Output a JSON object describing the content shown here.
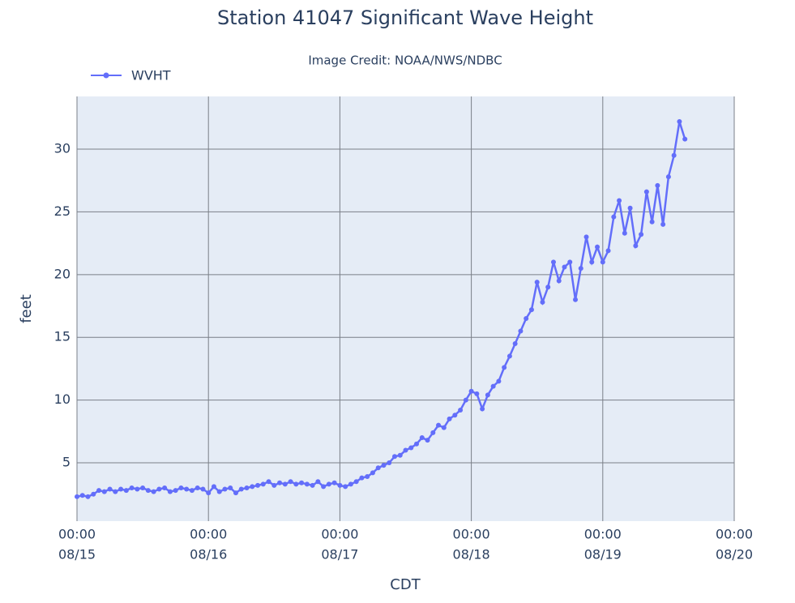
{
  "chart_data": {
    "type": "line",
    "title": "Station 41047 Significant Wave Height",
    "subtitle": "Image Credit: NOAA/NWS/NDBC",
    "x_label": "CDT",
    "y_label": "feet",
    "x": [
      "08/15 00:00",
      "08/15 01:00",
      "08/15 02:00",
      "08/15 03:00",
      "08/15 04:00",
      "08/15 05:00",
      "08/15 06:00",
      "08/15 07:00",
      "08/15 08:00",
      "08/15 09:00",
      "08/15 10:00",
      "08/15 11:00",
      "08/15 12:00",
      "08/15 13:00",
      "08/15 14:00",
      "08/15 15:00",
      "08/15 16:00",
      "08/15 17:00",
      "08/15 18:00",
      "08/15 19:00",
      "08/15 20:00",
      "08/15 21:00",
      "08/15 22:00",
      "08/15 23:00",
      "08/16 00:00",
      "08/16 01:00",
      "08/16 02:00",
      "08/16 03:00",
      "08/16 04:00",
      "08/16 05:00",
      "08/16 06:00",
      "08/16 07:00",
      "08/16 08:00",
      "08/16 09:00",
      "08/16 10:00",
      "08/16 11:00",
      "08/16 12:00",
      "08/16 13:00",
      "08/16 14:00",
      "08/16 15:00",
      "08/16 16:00",
      "08/16 17:00",
      "08/16 18:00",
      "08/16 19:00",
      "08/16 20:00",
      "08/16 21:00",
      "08/16 22:00",
      "08/16 23:00",
      "08/17 00:00",
      "08/17 01:00",
      "08/17 02:00",
      "08/17 03:00",
      "08/17 04:00",
      "08/17 05:00",
      "08/17 06:00",
      "08/17 07:00",
      "08/17 08:00",
      "08/17 09:00",
      "08/17 10:00",
      "08/17 11:00",
      "08/17 12:00",
      "08/17 13:00",
      "08/17 14:00",
      "08/17 15:00",
      "08/17 16:00",
      "08/17 17:00",
      "08/17 18:00",
      "08/17 19:00",
      "08/17 20:00",
      "08/17 21:00",
      "08/17 22:00",
      "08/17 23:00",
      "08/18 00:00",
      "08/18 01:00",
      "08/18 02:00",
      "08/18 03:00",
      "08/18 04:00",
      "08/18 05:00",
      "08/18 06:00",
      "08/18 07:00",
      "08/18 08:00",
      "08/18 09:00",
      "08/18 10:00",
      "08/18 11:00",
      "08/18 12:00",
      "08/18 13:00",
      "08/18 14:00",
      "08/18 15:00",
      "08/18 16:00",
      "08/18 17:00",
      "08/18 18:00",
      "08/18 19:00",
      "08/18 20:00",
      "08/18 21:00",
      "08/18 22:00",
      "08/18 23:00",
      "08/19 00:00",
      "08/19 01:00",
      "08/19 02:00",
      "08/19 03:00",
      "08/19 04:00",
      "08/19 05:00",
      "08/19 06:00",
      "08/19 07:00",
      "08/19 08:00",
      "08/19 09:00",
      "08/19 10:00",
      "08/19 11:00",
      "08/19 12:00",
      "08/19 13:00",
      "08/19 14:00",
      "08/19 15:00"
    ],
    "series": [
      {
        "name": "WVHT",
        "color": "#636efa",
        "values": [
          2.3,
          2.4,
          2.3,
          2.5,
          2.8,
          2.7,
          2.9,
          2.7,
          2.9,
          2.8,
          3.0,
          2.9,
          3.0,
          2.8,
          2.7,
          2.9,
          3.0,
          2.7,
          2.8,
          3.0,
          2.9,
          2.8,
          3.0,
          2.9,
          2.6,
          3.1,
          2.7,
          2.9,
          3.0,
          2.6,
          2.9,
          3.0,
          3.1,
          3.2,
          3.3,
          3.5,
          3.2,
          3.4,
          3.3,
          3.5,
          3.3,
          3.4,
          3.3,
          3.2,
          3.5,
          3.1,
          3.3,
          3.4,
          3.2,
          3.1,
          3.3,
          3.5,
          3.8,
          3.9,
          4.2,
          4.6,
          4.8,
          5.0,
          5.5,
          5.6,
          6.0,
          6.2,
          6.5,
          7.0,
          6.8,
          7.4,
          8.0,
          7.8,
          8.5,
          8.8,
          9.2,
          10.0,
          10.7,
          10.5,
          9.3,
          10.4,
          11.1,
          11.5,
          12.6,
          13.5,
          14.5,
          15.5,
          16.5,
          17.2,
          19.4,
          17.8,
          19.0,
          21.0,
          19.5,
          20.6,
          21.0,
          18.0,
          20.5,
          23.0,
          21.0,
          22.2,
          21.0,
          21.9,
          24.6,
          25.9,
          23.3,
          25.3,
          22.3,
          23.2,
          26.6,
          24.2,
          27.1,
          24.0,
          27.8,
          29.5,
          32.2,
          30.8
        ]
      }
    ],
    "xlim": [
      "08/15 00:00",
      "08/20 00:00"
    ],
    "xticks": [
      {
        "value": "08/15 00:00",
        "label": [
          "00:00",
          "08/15"
        ]
      },
      {
        "value": "08/16 00:00",
        "label": [
          "00:00",
          "08/16"
        ]
      },
      {
        "value": "08/17 00:00",
        "label": [
          "00:00",
          "08/17"
        ]
      },
      {
        "value": "08/18 00:00",
        "label": [
          "00:00",
          "08/18"
        ]
      },
      {
        "value": "08/19 00:00",
        "label": [
          "00:00",
          "08/19"
        ]
      },
      {
        "value": "08/20 00:00",
        "label": [
          "00:00",
          "08/20"
        ]
      }
    ],
    "ylim": [
      0.35,
      34.2
    ],
    "yticks": [
      5,
      10,
      15,
      20,
      25,
      30
    ],
    "grid": true,
    "legend": "top-left"
  }
}
